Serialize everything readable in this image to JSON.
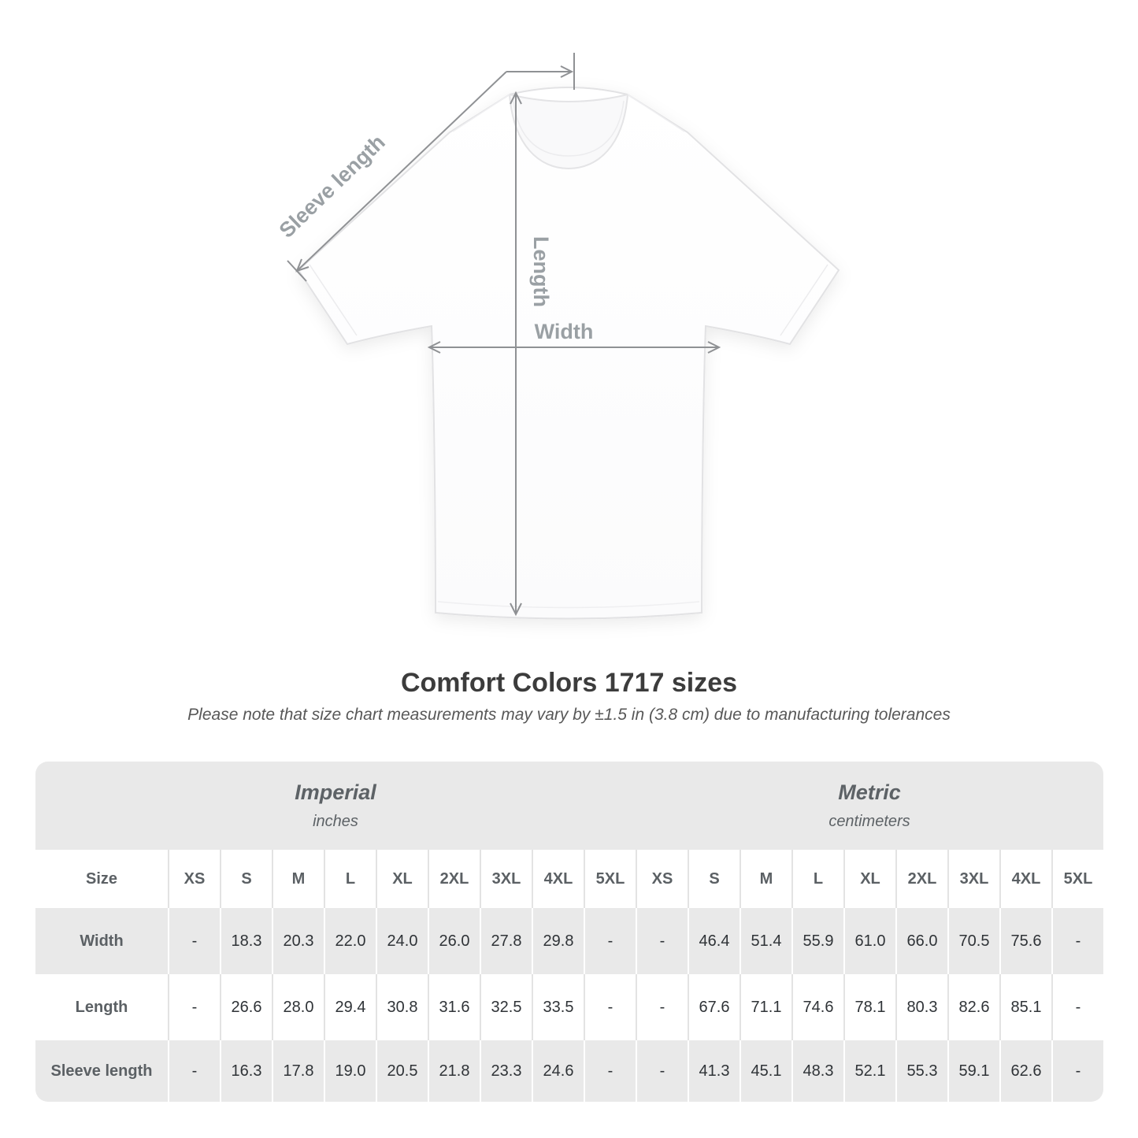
{
  "header": {
    "title": "Comfort Colors 1717 sizes",
    "note": "Please note that size chart measurements may vary by ±1.5 in (3.8 cm) due to manufacturing tolerances"
  },
  "diagram": {
    "sleeve_length_label": "Sleeve length",
    "length_label": "Length",
    "width_label": "Width"
  },
  "chart_data": {
    "type": "table",
    "title": "Comfort Colors 1717 sizes",
    "note": "Please note that size chart measurements may vary by ±1.5 in (3.8 cm) due to manufacturing tolerances",
    "size_label": "Size",
    "groups": [
      {
        "label": "Imperial",
        "unit": "inches"
      },
      {
        "label": "Metric",
        "unit": "centimeters"
      }
    ],
    "sizes": [
      "XS",
      "S",
      "M",
      "L",
      "XL",
      "2XL",
      "3XL",
      "4XL",
      "5XL"
    ],
    "rows": [
      {
        "label": "Width",
        "imperial": [
          "-",
          "18.3",
          "20.3",
          "22.0",
          "24.0",
          "26.0",
          "27.8",
          "29.8",
          "-"
        ],
        "metric": [
          "-",
          "46.4",
          "51.4",
          "55.9",
          "61.0",
          "66.0",
          "70.5",
          "75.6",
          "-"
        ]
      },
      {
        "label": "Length",
        "imperial": [
          "-",
          "26.6",
          "28.0",
          "29.4",
          "30.8",
          "31.6",
          "32.5",
          "33.5",
          "-"
        ],
        "metric": [
          "-",
          "67.6",
          "71.1",
          "74.6",
          "78.1",
          "80.3",
          "82.6",
          "85.1",
          "-"
        ]
      },
      {
        "label": "Sleeve length",
        "imperial": [
          "-",
          "16.3",
          "17.8",
          "19.0",
          "20.5",
          "21.8",
          "23.3",
          "24.6",
          "-"
        ],
        "metric": [
          "-",
          "41.3",
          "45.1",
          "48.3",
          "52.1",
          "55.3",
          "59.1",
          "62.6",
          "-"
        ]
      }
    ]
  },
  "colors": {
    "row_gray": "#e9e9e9",
    "header_text": "#5d6266",
    "data_text": "#2f3337",
    "arrow_gray": "#8f9194",
    "label_gray": "#9aa0a4"
  }
}
